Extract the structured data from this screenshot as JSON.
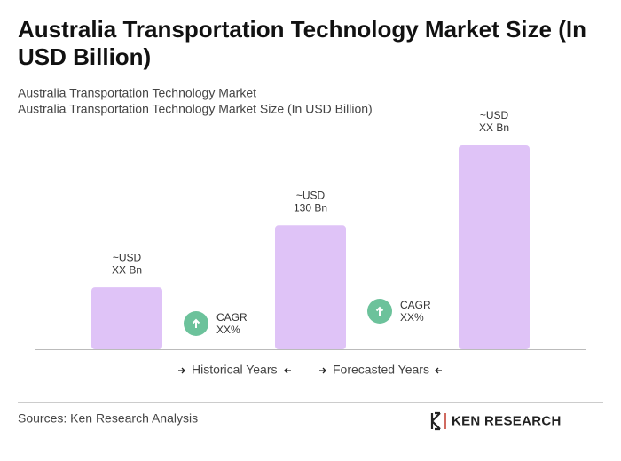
{
  "chart_data": {
    "type": "bar",
    "title": "Australia Transportation Technology Market Size (In USD Billion)",
    "subtitle": [
      "Australia Transportation Technology Market",
      "Australia Transportation Technology Market Size (In USD Billion)"
    ],
    "categories": [
      null,
      null,
      null
    ],
    "values": [
      65,
      130,
      214
    ],
    "value_labels": [
      [
        "~USD",
        "XX Bn"
      ],
      [
        "~USD",
        "130 Bn"
      ],
      [
        "~USD",
        "XX Bn"
      ]
    ],
    "color": "#dfc3f7",
    "annotations": [
      [
        "CAGR",
        "XX%"
      ],
      [
        "CAGR",
        "XX%"
      ]
    ],
    "periods": [
      "Historical Years",
      "Forecasted Years"
    ],
    "source": "Sources: Ken Research Analysis",
    "logo": "KEN RESEARCH"
  }
}
